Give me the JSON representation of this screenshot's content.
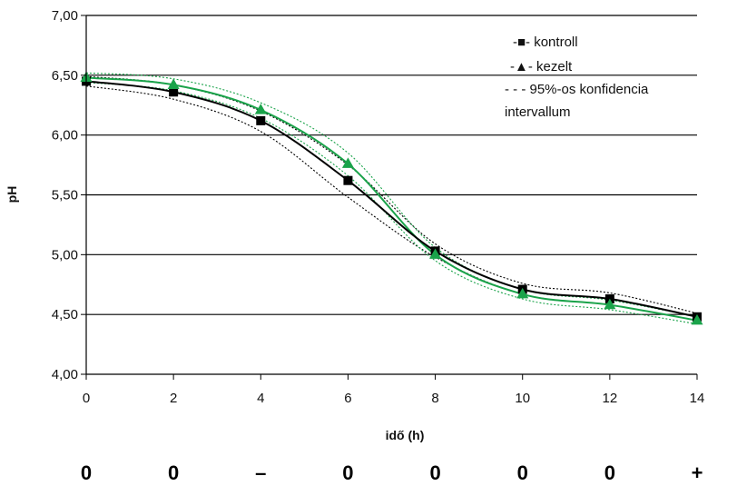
{
  "chart_data": {
    "type": "line",
    "title": "",
    "xlabel": "idő (h)",
    "ylabel": "pH",
    "x": [
      0,
      2,
      4,
      6,
      8,
      10,
      12,
      14
    ],
    "x_tick_labels": [
      "0",
      "2",
      "4",
      "6",
      "8",
      "10",
      "12",
      "14"
    ],
    "xlim": [
      0,
      14
    ],
    "ylim": [
      4.0,
      7.0
    ],
    "y_tick_values": [
      4.0,
      4.5,
      5.0,
      5.5,
      6.0,
      6.5,
      7.0
    ],
    "y_tick_labels": [
      "4,00",
      "4,50",
      "5,00",
      "5,50",
      "6,00",
      "6,50",
      "7,00"
    ],
    "grid": "horizontal",
    "legend_position": "top-right",
    "series": [
      {
        "name": "kontroll",
        "legend_label": "-■- kontroll",
        "marker": "square",
        "color": "#000000",
        "values": [
          6.45,
          6.36,
          6.12,
          5.62,
          5.03,
          4.71,
          4.63,
          4.48
        ],
        "ci_lower": [
          6.41,
          6.3,
          6.03,
          5.48,
          4.98,
          4.67,
          4.58,
          4.45
        ],
        "ci_upper": [
          6.49,
          6.42,
          6.2,
          5.75,
          5.09,
          4.76,
          4.68,
          4.51
        ]
      },
      {
        "name": "kezelt",
        "legend_label": "-▲- kezelt",
        "marker": "triangle",
        "color": "#1aa34a",
        "values": [
          6.48,
          6.42,
          6.21,
          5.76,
          5.0,
          4.67,
          4.58,
          4.45
        ],
        "ci_lower": [
          6.44,
          6.37,
          6.14,
          5.66,
          4.95,
          4.63,
          4.54,
          4.42
        ],
        "ci_upper": [
          6.52,
          6.47,
          6.27,
          5.85,
          5.06,
          4.71,
          4.62,
          4.48
        ]
      }
    ],
    "ci_legend_label": "- - - 95%-os konfidencia",
    "ci_legend_label_line2": "intervallum",
    "bottom_markers": [
      "0",
      "0",
      "–",
      "0",
      "0",
      "0",
      "0",
      "+"
    ]
  }
}
